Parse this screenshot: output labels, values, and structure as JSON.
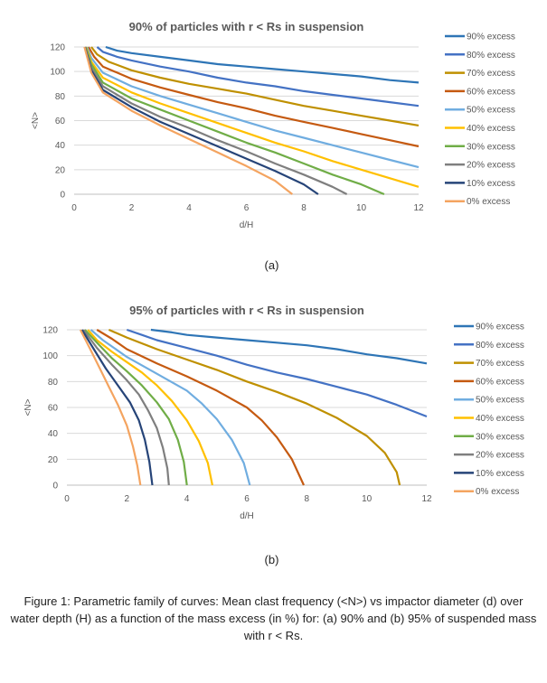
{
  "chart_data": [
    {
      "type": "line",
      "title": "90% of particles with r < Rs in suspension",
      "xlabel": "d/H",
      "ylabel": "<N>",
      "xlim": [
        0,
        12
      ],
      "ylim": [
        0,
        120
      ],
      "xticks": [
        0,
        2,
        4,
        6,
        8,
        10,
        12
      ],
      "yticks": [
        0,
        20,
        40,
        60,
        80,
        100,
        120
      ],
      "legend_position": "right",
      "grid": "horizontal",
      "series": [
        {
          "name": "90% excess",
          "color": "#2E75B6",
          "points": [
            [
              1.1,
              120
            ],
            [
              1.5,
              117
            ],
            [
              2,
              115
            ],
            [
              3,
              112
            ],
            [
              4,
              109
            ],
            [
              5,
              106
            ],
            [
              6,
              104
            ],
            [
              7,
              102
            ],
            [
              8,
              100
            ],
            [
              9,
              98
            ],
            [
              10,
              96
            ],
            [
              11,
              93
            ],
            [
              12,
              91
            ]
          ]
        },
        {
          "name": "80% excess",
          "color": "#4472C4",
          "points": [
            [
              0.8,
              120
            ],
            [
              1,
              116
            ],
            [
              1.5,
              112
            ],
            [
              2,
              109
            ],
            [
              3,
              104
            ],
            [
              4,
              100
            ],
            [
              5,
              95
            ],
            [
              6,
              91
            ],
            [
              7,
              88
            ],
            [
              8,
              84
            ],
            [
              9,
              81
            ],
            [
              10,
              78
            ],
            [
              11,
              75
            ],
            [
              12,
              72
            ]
          ]
        },
        {
          "name": "70% excess",
          "color": "#BF9000",
          "points": [
            [
              0.6,
              120
            ],
            [
              0.8,
              114
            ],
            [
              1.2,
              108
            ],
            [
              2,
              101
            ],
            [
              3,
              95
            ],
            [
              4,
              90
            ],
            [
              5,
              86
            ],
            [
              6,
              82
            ],
            [
              7,
              77
            ],
            [
              8,
              72
            ],
            [
              9,
              68
            ],
            [
              10,
              64
            ],
            [
              11,
              60
            ],
            [
              12,
              56
            ]
          ]
        },
        {
          "name": "60% excess",
          "color": "#C55A11",
          "points": [
            [
              0.5,
              120
            ],
            [
              0.7,
              112
            ],
            [
              1,
              104
            ],
            [
              2,
              94
            ],
            [
              3,
              87
            ],
            [
              4,
              81
            ],
            [
              5,
              75
            ],
            [
              6,
              70
            ],
            [
              7,
              64
            ],
            [
              8,
              59
            ],
            [
              9,
              54
            ],
            [
              10,
              49
            ],
            [
              11,
              44
            ],
            [
              12,
              39
            ]
          ]
        },
        {
          "name": "50% excess",
          "color": "#70ADE0",
          "points": [
            [
              0.45,
              120
            ],
            [
              0.6,
              111
            ],
            [
              1,
              99
            ],
            [
              2,
              88
            ],
            [
              3,
              80
            ],
            [
              4,
              73
            ],
            [
              5,
              66
            ],
            [
              6,
              59
            ],
            [
              7,
              52
            ],
            [
              8,
              46
            ],
            [
              9,
              40
            ],
            [
              10,
              34
            ],
            [
              11,
              28
            ],
            [
              12,
              22
            ]
          ]
        },
        {
          "name": "40% excess",
          "color": "#FFC000",
          "points": [
            [
              0.42,
              120
            ],
            [
              0.6,
              108
            ],
            [
              1,
              95
            ],
            [
              2,
              83
            ],
            [
              3,
              74
            ],
            [
              4,
              66
            ],
            [
              5,
              58
            ],
            [
              6,
              50
            ],
            [
              7,
              42
            ],
            [
              8,
              35
            ],
            [
              9,
              27
            ],
            [
              10,
              20
            ],
            [
              11,
              13
            ],
            [
              12,
              6
            ]
          ]
        },
        {
          "name": "30% excess",
          "color": "#70AD47",
          "points": [
            [
              0.4,
              120
            ],
            [
              0.6,
              106
            ],
            [
              1,
              91
            ],
            [
              2,
              78
            ],
            [
              3,
              69
            ],
            [
              4,
              60
            ],
            [
              5,
              51
            ],
            [
              6,
              42
            ],
            [
              7,
              34
            ],
            [
              8,
              25
            ],
            [
              9,
              16
            ],
            [
              10,
              8
            ],
            [
              10.8,
              0
            ]
          ]
        },
        {
          "name": "20% excess",
          "color": "#7F7F7F",
          "points": [
            [
              0.38,
              120
            ],
            [
              0.6,
              103
            ],
            [
              1,
              88
            ],
            [
              2,
              74
            ],
            [
              3,
              63
            ],
            [
              4,
              54
            ],
            [
              5,
              44
            ],
            [
              6,
              35
            ],
            [
              7,
              25
            ],
            [
              8,
              16
            ],
            [
              9,
              6
            ],
            [
              9.5,
              0
            ]
          ]
        },
        {
          "name": "10% excess",
          "color": "#264478",
          "points": [
            [
              0.37,
              120
            ],
            [
              0.6,
              101
            ],
            [
              1,
              85
            ],
            [
              2,
              71
            ],
            [
              3,
              59
            ],
            [
              4,
              49
            ],
            [
              5,
              39
            ],
            [
              6,
              29
            ],
            [
              7,
              19
            ],
            [
              8,
              8
            ],
            [
              8.5,
              0
            ]
          ]
        },
        {
          "name": "0% excess",
          "color": "#F4A460",
          "points": [
            [
              0.36,
              120
            ],
            [
              0.6,
              99
            ],
            [
              1,
              83
            ],
            [
              2,
              68
            ],
            [
              3,
              56
            ],
            [
              4,
              45
            ],
            [
              5,
              34
            ],
            [
              6,
              23
            ],
            [
              7,
              11
            ],
            [
              7.6,
              0
            ]
          ]
        }
      ]
    },
    {
      "type": "line",
      "title": "95% of particles with r < Rs in suspension",
      "xlabel": "d/H",
      "ylabel": "<N>",
      "xlim": [
        0,
        12
      ],
      "ylim": [
        0,
        120
      ],
      "xticks": [
        0,
        2,
        4,
        6,
        8,
        10,
        12
      ],
      "yticks": [
        0,
        20,
        40,
        60,
        80,
        100,
        120
      ],
      "legend_position": "right",
      "grid": "horizontal",
      "series": [
        {
          "name": "90% excess",
          "color": "#2E75B6",
          "points": [
            [
              2.8,
              120
            ],
            [
              3.5,
              118
            ],
            [
              4,
              116
            ],
            [
              5,
              114
            ],
            [
              6,
              112
            ],
            [
              7,
              110
            ],
            [
              8,
              108
            ],
            [
              9,
              105
            ],
            [
              10,
              101
            ],
            [
              11,
              98
            ],
            [
              12,
              94
            ]
          ]
        },
        {
          "name": "80% excess",
          "color": "#4472C4",
          "points": [
            [
              2,
              120
            ],
            [
              2.5,
              116
            ],
            [
              3,
              112
            ],
            [
              4,
              106
            ],
            [
              5,
              100
            ],
            [
              6,
              93
            ],
            [
              7,
              87
            ],
            [
              8,
              82
            ],
            [
              9,
              76
            ],
            [
              10,
              70
            ],
            [
              11,
              62
            ],
            [
              12,
              53
            ]
          ]
        },
        {
          "name": "70% excess",
          "color": "#BF9000",
          "points": [
            [
              1.4,
              120
            ],
            [
              2,
              114
            ],
            [
              3,
              105
            ],
            [
              4,
              97
            ],
            [
              5,
              89
            ],
            [
              6,
              80
            ],
            [
              7,
              72
            ],
            [
              8,
              63
            ],
            [
              9,
              52
            ],
            [
              10,
              38
            ],
            [
              10.6,
              25
            ],
            [
              11,
              10
            ],
            [
              11.1,
              0
            ]
          ]
        },
        {
          "name": "60% excess",
          "color": "#C55A11",
          "points": [
            [
              1,
              120
            ],
            [
              1.5,
              113
            ],
            [
              2,
              105
            ],
            [
              3,
              94
            ],
            [
              4,
              84
            ],
            [
              5,
              73
            ],
            [
              6,
              60
            ],
            [
              6.5,
              50
            ],
            [
              7,
              37
            ],
            [
              7.5,
              20
            ],
            [
              7.9,
              0
            ]
          ]
        },
        {
          "name": "50% excess",
          "color": "#70ADE0",
          "points": [
            [
              0.8,
              120
            ],
            [
              1.2,
              112
            ],
            [
              2,
              99
            ],
            [
              3,
              86
            ],
            [
              4,
              73
            ],
            [
              4.5,
              63
            ],
            [
              5,
              51
            ],
            [
              5.5,
              35
            ],
            [
              5.9,
              17
            ],
            [
              6.1,
              0
            ]
          ]
        },
        {
          "name": "40% excess",
          "color": "#FFC000",
          "points": [
            [
              0.7,
              120
            ],
            [
              1,
              112
            ],
            [
              1.5,
              103
            ],
            [
              2,
              95
            ],
            [
              2.5,
              87
            ],
            [
              3,
              77
            ],
            [
              3.5,
              65
            ],
            [
              4,
              50
            ],
            [
              4.4,
              34
            ],
            [
              4.7,
              17
            ],
            [
              4.85,
              0
            ]
          ]
        },
        {
          "name": "30% excess",
          "color": "#70AD47",
          "points": [
            [
              0.6,
              120
            ],
            [
              1,
              110
            ],
            [
              1.5,
              98
            ],
            [
              2,
              88
            ],
            [
              2.5,
              77
            ],
            [
              3,
              64
            ],
            [
              3.4,
              51
            ],
            [
              3.7,
              35
            ],
            [
              3.9,
              18
            ],
            [
              4,
              0
            ]
          ]
        },
        {
          "name": "20% excess",
          "color": "#7F7F7F",
          "points": [
            [
              0.55,
              120
            ],
            [
              1,
              106
            ],
            [
              1.5,
              93
            ],
            [
              2,
              81
            ],
            [
              2.4,
              70
            ],
            [
              2.7,
              58
            ],
            [
              3,
              44
            ],
            [
              3.2,
              29
            ],
            [
              3.35,
              13
            ],
            [
              3.4,
              0
            ]
          ]
        },
        {
          "name": "10% excess",
          "color": "#264478",
          "points": [
            [
              0.5,
              120
            ],
            [
              0.9,
              105
            ],
            [
              1.3,
              90
            ],
            [
              1.7,
              77
            ],
            [
              2.1,
              64
            ],
            [
              2.4,
              50
            ],
            [
              2.6,
              35
            ],
            [
              2.75,
              18
            ],
            [
              2.85,
              0
            ]
          ]
        },
        {
          "name": "0% excess",
          "color": "#F4A460",
          "points": [
            [
              0.45,
              120
            ],
            [
              0.8,
              104
            ],
            [
              1.1,
              90
            ],
            [
              1.4,
              76
            ],
            [
              1.7,
              62
            ],
            [
              2,
              46
            ],
            [
              2.2,
              30
            ],
            [
              2.35,
              15
            ],
            [
              2.45,
              0
            ]
          ]
        }
      ]
    }
  ],
  "labels": {
    "a": "(a)",
    "b": "(b)"
  },
  "caption": "Figure 1: Parametric family of curves: Mean clast frequency (<N>) vs impactor diameter (d) over water depth (H) as a function of the mass excess (in %) for: (a) 90% and (b) 95% of suspended mass with r < Rs."
}
